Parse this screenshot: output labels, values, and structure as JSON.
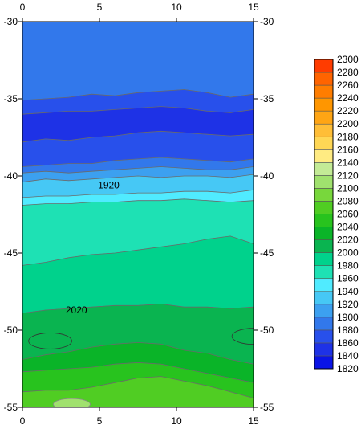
{
  "chart_data": {
    "type": "heatmap",
    "subtype": "filled-contour",
    "x_ticks": [
      0,
      5,
      10,
      15
    ],
    "y_ticks": [
      -30,
      -35,
      -40,
      -45,
      -50,
      -55
    ],
    "xlim": [
      0,
      15
    ],
    "ylim": [
      -55,
      -30
    ],
    "grid": false,
    "legend_position": "right",
    "colorbar": {
      "levels": [
        1820,
        1840,
        1860,
        1880,
        1900,
        1920,
        1940,
        1960,
        1980,
        2000,
        2020,
        2040,
        2060,
        2080,
        2100,
        2120,
        2140,
        2160,
        2180,
        2200,
        2220,
        2240,
        2260,
        2280,
        2300
      ],
      "colors": [
        "#0a14e6",
        "#1e32e6",
        "#2850eb",
        "#3278eb",
        "#3ca0f0",
        "#46c8f5",
        "#50ebff",
        "#1ee1b4",
        "#00d28c",
        "#0ab450",
        "#0ab428",
        "#28c31e",
        "#50cd23",
        "#78d73c",
        "#a0e16e",
        "#c3eb96",
        "#ffeb82",
        "#ffd755",
        "#ffbe37",
        "#ffa514",
        "#ff9600",
        "#ff7d00",
        "#ff6400",
        "#ff3c00",
        "#ff0000"
      ]
    },
    "bands": [
      {
        "level": 1880,
        "y_top": -30.0,
        "y_bottom": [
          -35.1,
          -35.0,
          -34.9,
          -34.7,
          -34.8,
          -34.6,
          -34.5,
          -34.4,
          -34.6,
          -34.9,
          -34.7
        ]
      },
      {
        "level": 1860,
        "y_top": null,
        "y_bottom": [
          -36.0,
          -35.9,
          -35.8,
          -35.8,
          -35.7,
          -35.6,
          -35.5,
          -35.6,
          -35.8,
          -35.9,
          -35.7
        ]
      },
      {
        "level": 1840,
        "y_top": null,
        "y_bottom": [
          -37.8,
          -37.6,
          -37.7,
          -37.5,
          -37.4,
          -37.2,
          -37.1,
          -37.2,
          -37.3,
          -37.4,
          -37.3
        ]
      },
      {
        "level": 1860,
        "y_top": null,
        "y_bottom": [
          -39.4,
          -39.3,
          -39.2,
          -39.2,
          -39.0,
          -38.9,
          -38.8,
          -38.9,
          -39.0,
          -39.1,
          -38.9
        ]
      },
      {
        "level": 1880,
        "y_top": null,
        "y_bottom": [
          -39.8,
          -39.7,
          -39.8,
          -39.7,
          -39.6,
          -39.5,
          -39.4,
          -39.5,
          -39.6,
          -39.6,
          -39.4
        ]
      },
      {
        "level": 1900,
        "y_top": null,
        "y_bottom": [
          -40.4,
          -40.2,
          -40.3,
          -40.2,
          -40.1,
          -40.0,
          -40.1,
          -40.0,
          -40.0,
          -40.1,
          -39.9
        ]
      },
      {
        "level": 1920,
        "y_top": null,
        "y_bottom": [
          -41.4,
          -41.3,
          -41.3,
          -41.2,
          -41.2,
          -41.1,
          -41.1,
          -41.0,
          -41.0,
          -41.1,
          -40.9
        ]
      },
      {
        "level": 1940,
        "y_top": null,
        "y_bottom": [
          -41.9,
          -41.8,
          -41.8,
          -41.7,
          -41.7,
          -41.6,
          -41.6,
          -41.5,
          -41.6,
          -41.7,
          -41.6
        ]
      },
      {
        "level": 1960,
        "y_top": null,
        "y_bottom": [
          -45.8,
          -45.6,
          -45.3,
          -45.1,
          -45.0,
          -44.8,
          -44.6,
          -44.4,
          -44.1,
          -43.9,
          -44.4
        ]
      },
      {
        "level": 1980,
        "y_top": null,
        "y_bottom": [
          -48.9,
          -48.7,
          -48.6,
          -48.5,
          -48.4,
          -48.4,
          -48.3,
          -48.5,
          -48.5,
          -48.6,
          -48.5
        ]
      },
      {
        "level": 2000,
        "y_top": null,
        "y_bottom": [
          -51.9,
          -51.6,
          -51.4,
          -51.1,
          -50.9,
          -50.8,
          -50.9,
          -51.3,
          -51.5,
          -51.9,
          -52.2
        ]
      },
      {
        "level": 2020,
        "y_top": null,
        "y_bottom": [
          -52.7,
          -52.6,
          -52.5,
          -52.4,
          -52.2,
          -52.1,
          -52.2,
          -52.5,
          -52.8,
          -53.1,
          -53.4
        ]
      },
      {
        "level": 2040,
        "y_top": null,
        "y_bottom": [
          -54.0,
          -53.9,
          -53.9,
          -53.7,
          -53.4,
          -53.1,
          -53.0,
          -53.3,
          -53.6,
          -54.0,
          -54.4
        ]
      },
      {
        "level": 2060,
        "y_top": null,
        "y_bottom": [
          -55.0,
          -55.0,
          -55.0,
          -55.0,
          -55.0,
          -55.0,
          -55.0,
          -55.0,
          -55.0,
          -55.0,
          -55.0
        ]
      }
    ],
    "contour_labels": [
      {
        "text": "1920",
        "x": 5.6,
        "y": -40.6
      },
      {
        "text": "2020",
        "x": 3.5,
        "y": -48.7
      }
    ],
    "closed_contours": [
      {
        "level": 2020,
        "cx": 1.8,
        "cy": -50.7
      },
      {
        "level": 2020,
        "cx": 15.0,
        "cy": -50.4
      },
      {
        "level": 2080,
        "cx": 3.2,
        "cy": -54.8
      }
    ]
  }
}
